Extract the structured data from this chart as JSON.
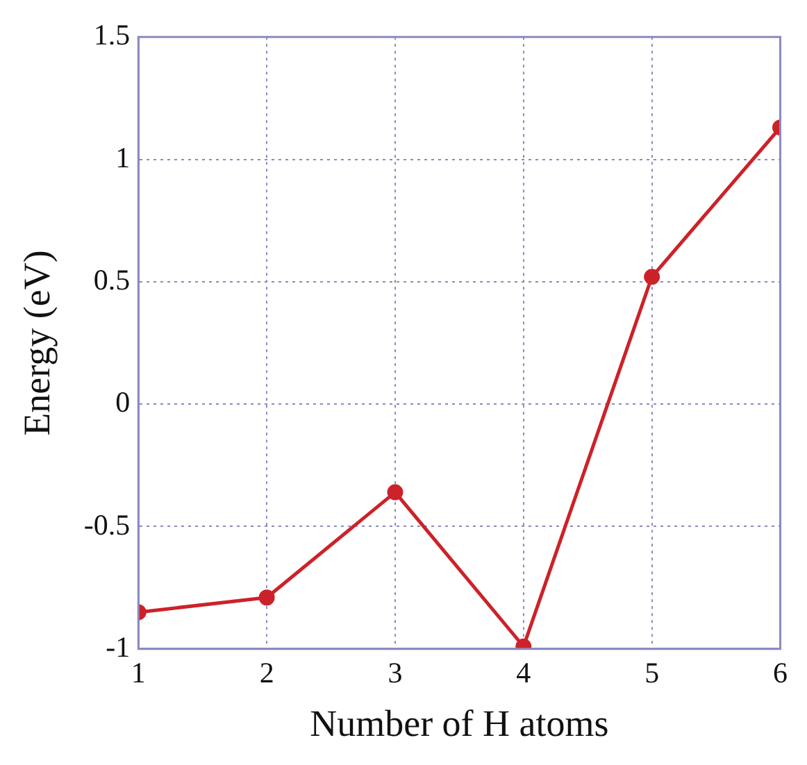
{
  "chart_data": {
    "type": "line",
    "xlabel": "Number of H atoms",
    "ylabel": "Energy (eV)",
    "x": [
      1,
      2,
      3,
      4,
      5,
      6
    ],
    "series": [
      {
        "color": "#cc2229",
        "values": [
          -0.85,
          -0.79,
          -0.36,
          -0.99,
          0.52,
          1.13
        ]
      }
    ],
    "xlim": [
      1,
      6
    ],
    "xticks": [
      1,
      2,
      3,
      4,
      5,
      6
    ],
    "ylim": [
      -1,
      1.5
    ],
    "yticks": [
      -1,
      -0.5,
      0,
      0.5,
      1,
      1.5
    ],
    "grid": true,
    "marker": "circle",
    "line_style": "solid",
    "legend": false
  }
}
